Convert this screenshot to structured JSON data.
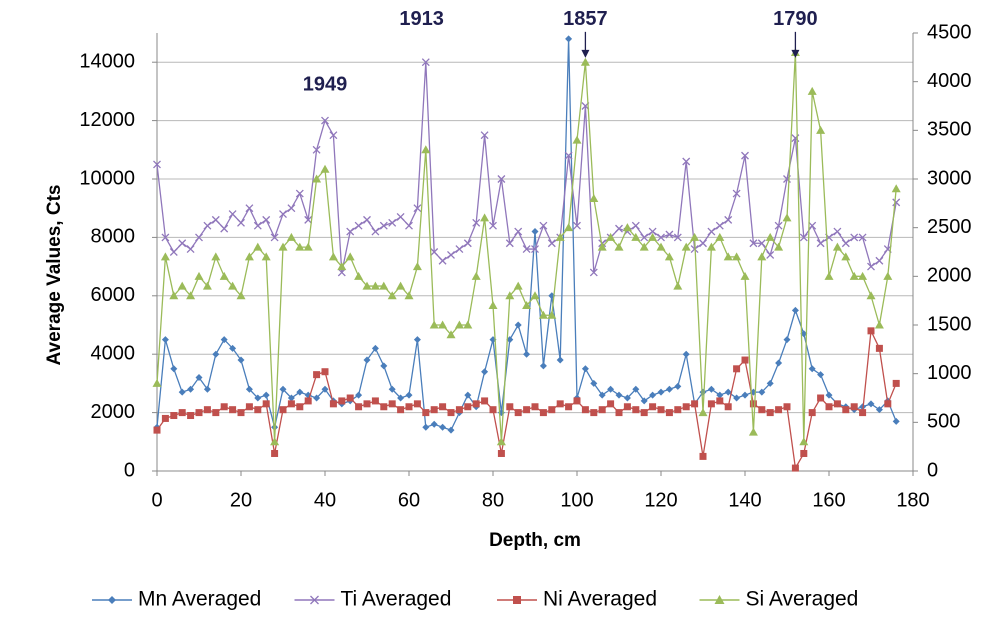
{
  "chart_data": {
    "type": "scatter-line",
    "xlabel": "Depth, cm",
    "ylabel": "Average  Values, Cts",
    "xlim": [
      0,
      180
    ],
    "xticks": [
      0,
      20,
      40,
      60,
      80,
      100,
      120,
      140,
      160,
      180
    ],
    "ylim": [
      0,
      15000
    ],
    "yticks": [
      0,
      2000,
      4000,
      6000,
      8000,
      10000,
      12000,
      14000
    ],
    "y2lim": [
      0,
      4500
    ],
    "y2ticks": [
      0,
      500,
      1000,
      1500,
      2000,
      2500,
      3000,
      3500,
      4000,
      4500
    ],
    "grid": true,
    "legend": "bottom",
    "annotations": [
      {
        "text": "1949",
        "x": 40,
        "y": 13220,
        "arrow": false
      },
      {
        "text": "1913",
        "x": 63,
        "y": 15450,
        "arrow": false
      },
      {
        "text": "1857",
        "x": 102,
        "y": 15450,
        "arrow": true
      },
      {
        "text": "1790",
        "x": 152,
        "y": 15450,
        "arrow": true
      }
    ],
    "x": [
      0,
      2,
      4,
      6,
      8,
      10,
      12,
      14,
      16,
      18,
      20,
      22,
      24,
      26,
      28,
      30,
      32,
      34,
      36,
      38,
      40,
      42,
      44,
      46,
      48,
      50,
      52,
      54,
      56,
      58,
      60,
      62,
      64,
      66,
      68,
      70,
      72,
      74,
      76,
      78,
      80,
      82,
      84,
      86,
      88,
      90,
      92,
      94,
      96,
      98,
      100,
      102,
      104,
      106,
      108,
      110,
      112,
      114,
      116,
      118,
      120,
      122,
      124,
      126,
      128,
      130,
      132,
      134,
      136,
      138,
      140,
      142,
      144,
      146,
      148,
      150,
      152,
      154,
      156,
      158,
      160,
      162,
      164,
      166,
      168,
      170,
      172,
      174,
      176
    ],
    "series": [
      {
        "name": "Mn Averaged",
        "color": "#4a7ebb",
        "marker": "diamond",
        "axis": "y",
        "values": [
          1500,
          4500,
          3500,
          2700,
          2800,
          3200,
          2800,
          4000,
          4500,
          4200,
          3800,
          2800,
          2500,
          2600,
          1500,
          2800,
          2500,
          2700,
          2600,
          2500,
          2800,
          2400,
          2300,
          2400,
          2600,
          3800,
          4200,
          3600,
          2800,
          2500,
          2600,
          4500,
          1500,
          1600,
          1500,
          1400,
          2000,
          2600,
          2200,
          3400,
          4500,
          2000,
          4500,
          5000,
          4000,
          8200,
          3600,
          6000,
          3800,
          14800,
          2500,
          3500,
          3000,
          2600,
          2800,
          2600,
          2500,
          2800,
          2400,
          2600,
          2700,
          2800,
          2900,
          4000,
          2300,
          2700,
          2800,
          2600,
          2700,
          2500,
          2600,
          2700,
          2700,
          3000,
          3700,
          4500,
          5500,
          4700,
          3500,
          3300,
          2600,
          2300,
          2200,
          2100,
          2200,
          2300,
          2100,
          2400,
          1700
        ]
      },
      {
        "name": "Ti Averaged",
        "color": "#9077bb",
        "marker": "x",
        "axis": "y",
        "values": [
          10500,
          8000,
          7500,
          7800,
          7600,
          8000,
          8400,
          8600,
          8300,
          8800,
          8500,
          9000,
          8400,
          8600,
          8000,
          8800,
          9000,
          9500,
          8600,
          11000,
          12000,
          11500,
          6800,
          8200,
          8400,
          8600,
          8200,
          8400,
          8500,
          8700,
          8400,
          9000,
          14000,
          7500,
          7200,
          7400,
          7600,
          7800,
          8500,
          11500,
          8400,
          10000,
          7800,
          8200,
          7600,
          7600,
          8400,
          7800,
          8000,
          10800,
          8400,
          12500,
          6800,
          7800,
          8000,
          8300,
          8200,
          8400,
          8000,
          8200,
          8000,
          8100,
          8000,
          10600,
          7600,
          7800,
          8200,
          8400,
          8600,
          9500,
          10800,
          7800,
          7800,
          7400,
          8400,
          10000,
          11400,
          8000,
          8400,
          7800,
          8000,
          8200,
          7800,
          8000,
          8000,
          7000,
          7200,
          7600,
          9200
        ]
      },
      {
        "name": "Ni Averaged",
        "color": "#c0504d",
        "marker": "square",
        "axis": "y",
        "values": [
          1400,
          1800,
          1900,
          2000,
          1900,
          2000,
          2100,
          2000,
          2200,
          2100,
          2000,
          2200,
          2100,
          2300,
          600,
          2100,
          2300,
          2200,
          2400,
          3300,
          3400,
          2300,
          2400,
          2500,
          2200,
          2300,
          2400,
          2200,
          2300,
          2100,
          2200,
          2300,
          2000,
          2100,
          2200,
          2000,
          2100,
          2200,
          2300,
          2400,
          2100,
          600,
          2200,
          2000,
          2100,
          2200,
          2000,
          2100,
          2300,
          2200,
          2400,
          2100,
          2000,
          2100,
          2300,
          2000,
          2200,
          2100,
          2000,
          2200,
          2100,
          2000,
          2100,
          2200,
          2300,
          500,
          2300,
          2400,
          2200,
          3500,
          3800,
          2300,
          2100,
          2000,
          2100,
          2200,
          100,
          600,
          2000,
          2500,
          2200,
          2300,
          2100,
          2200,
          2000,
          4800,
          4200,
          2300,
          3000
        ]
      },
      {
        "name": "Si Averaged",
        "color": "#9bbb59",
        "marker": "triangle",
        "axis": "y2",
        "values": [
          900,
          2200,
          1800,
          1900,
          1800,
          2000,
          1900,
          2200,
          2000,
          1900,
          1800,
          2200,
          2300,
          2200,
          300,
          2300,
          2400,
          2300,
          2300,
          3000,
          3100,
          2200,
          2100,
          2200,
          2000,
          1900,
          1900,
          1900,
          1800,
          1900,
          1800,
          2100,
          3300,
          1500,
          1500,
          1400,
          1500,
          1500,
          2000,
          2600,
          1700,
          300,
          1800,
          1900,
          1700,
          1800,
          1600,
          1600,
          2400,
          2500,
          3400,
          4200,
          2800,
          2300,
          2400,
          2300,
          2500,
          2400,
          2300,
          2400,
          2300,
          2200,
          1900,
          2300,
          2400,
          600,
          2300,
          2400,
          2200,
          2200,
          2000,
          400,
          2200,
          2400,
          2300,
          2600,
          4300,
          300,
          3900,
          3500,
          2000,
          2300,
          2200,
          2000,
          2000,
          1800,
          1500,
          2000,
          2900
        ]
      }
    ]
  }
}
